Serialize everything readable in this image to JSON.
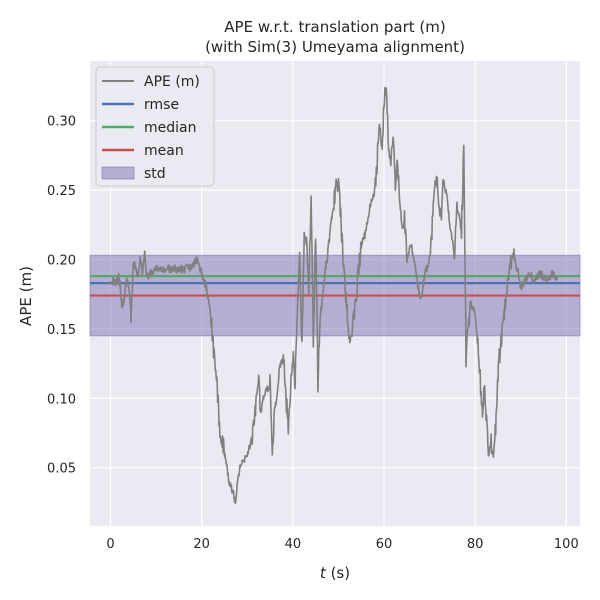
{
  "chart_data": {
    "type": "line",
    "title": "APE w.r.t. translation part (m)",
    "subtitle": "(with Sim(3) Umeyama alignment)",
    "xlabel_italic": "t",
    "xlabel_rest": " (s)",
    "ylabel": "APE (m)",
    "xlim": [
      -4.5,
      103
    ],
    "ylim": [
      0.008,
      0.343
    ],
    "xticks": [
      0,
      20,
      40,
      60,
      80,
      100
    ],
    "yticks": [
      0.05,
      0.1,
      0.15,
      0.2,
      0.25,
      0.3
    ],
    "ytick_labels": [
      "0.05",
      "0.10",
      "0.15",
      "0.20",
      "0.25",
      "0.30"
    ],
    "grid": true,
    "legend_position": "top-left",
    "colors": {
      "background": "#eaeaf2",
      "grid": "#ffffff",
      "ape": "#808080",
      "rmse": "#4c72b0",
      "median": "#55a868",
      "mean": "#c44e52",
      "std": "#8172b2"
    },
    "legend": [
      {
        "key": "ape",
        "label": "APE (m)"
      },
      {
        "key": "rmse",
        "label": "rmse"
      },
      {
        "key": "median",
        "label": "median"
      },
      {
        "key": "mean",
        "label": "mean"
      },
      {
        "key": "std",
        "label": "std"
      }
    ],
    "stats": {
      "rmse": 0.183,
      "median": 0.188,
      "mean": 0.174,
      "std_low": 0.145,
      "std_high": 0.203
    },
    "series": [
      {
        "key": "ape",
        "x": [
          0,
          1,
          2,
          2.5,
          3,
          3.5,
          4,
          4.5,
          5,
          5.5,
          6,
          6.5,
          7,
          7.5,
          8,
          9,
          10,
          12,
          14,
          16,
          18,
          19,
          19.5,
          20,
          21,
          22,
          23,
          24,
          25,
          26,
          27,
          27.5,
          28,
          29,
          30,
          31,
          32,
          32.5,
          33,
          33.5,
          34,
          35,
          35.5,
          36,
          36.5,
          37,
          38,
          38.5,
          39,
          40,
          40.5,
          41,
          41.5,
          42,
          42.5,
          43,
          43.5,
          44,
          44.5,
          45,
          45.5,
          46,
          46.5,
          47,
          47.5,
          48,
          48.5,
          49,
          50,
          51,
          52,
          52.5,
          53,
          54,
          55,
          56,
          57,
          58,
          58.5,
          59,
          59.5,
          60,
          60.5,
          61,
          61.5,
          62,
          62.5,
          63,
          63.5,
          64,
          64.5,
          65,
          66,
          67,
          68,
          69,
          70,
          70.5,
          71,
          71.5,
          72,
          72.5,
          73,
          73.5,
          74,
          74.5,
          75,
          75.5,
          76,
          76.5,
          77,
          77.5,
          78,
          79,
          80,
          80.5,
          81,
          81.5,
          82,
          82.5,
          83,
          83.5,
          84,
          84.5,
          85,
          86,
          87,
          88,
          88.5,
          89,
          89.5,
          90,
          91,
          92,
          93,
          94,
          95,
          96,
          97,
          98
        ],
        "y": [
          0.186,
          0.183,
          0.188,
          0.165,
          0.172,
          0.186,
          0.18,
          0.16,
          0.198,
          0.195,
          0.188,
          0.2,
          0.19,
          0.203,
          0.188,
          0.19,
          0.193,
          0.193,
          0.193,
          0.193,
          0.195,
          0.2,
          0.195,
          0.19,
          0.18,
          0.16,
          0.12,
          0.08,
          0.06,
          0.04,
          0.03,
          0.025,
          0.045,
          0.055,
          0.06,
          0.07,
          0.1,
          0.11,
          0.09,
          0.1,
          0.105,
          0.11,
          0.06,
          0.095,
          0.1,
          0.12,
          0.13,
          0.1,
          0.08,
          0.13,
          0.11,
          0.17,
          0.2,
          0.14,
          0.22,
          0.21,
          0.175,
          0.25,
          0.14,
          0.22,
          0.11,
          0.16,
          0.17,
          0.19,
          0.2,
          0.215,
          0.23,
          0.24,
          0.26,
          0.2,
          0.155,
          0.14,
          0.15,
          0.18,
          0.21,
          0.22,
          0.24,
          0.25,
          0.27,
          0.3,
          0.28,
          0.31,
          0.33,
          0.28,
          0.27,
          0.29,
          0.25,
          0.27,
          0.24,
          0.22,
          0.23,
          0.2,
          0.21,
          0.19,
          0.17,
          0.19,
          0.2,
          0.22,
          0.25,
          0.26,
          0.24,
          0.23,
          0.26,
          0.25,
          0.24,
          0.22,
          0.215,
          0.2,
          0.24,
          0.23,
          0.22,
          0.28,
          0.13,
          0.17,
          0.16,
          0.14,
          0.12,
          0.09,
          0.11,
          0.08,
          0.06,
          0.07,
          0.05,
          0.08,
          0.12,
          0.15,
          0.18,
          0.2,
          0.205,
          0.195,
          0.19,
          0.18,
          0.185,
          0.19,
          0.185,
          0.19,
          0.188,
          0.185,
          0.19,
          0.185
        ]
      }
    ]
  }
}
